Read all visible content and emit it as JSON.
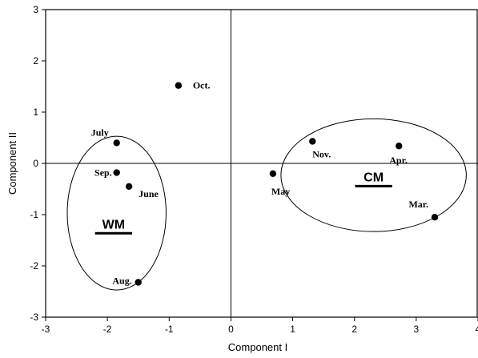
{
  "chart_data": {
    "type": "scatter",
    "title": "",
    "xlabel": "Component I",
    "ylabel": "Component II",
    "xlim": [
      -3,
      4
    ],
    "ylim": [
      -3,
      3
    ],
    "xticks": [
      -3,
      -2,
      -1,
      0,
      1,
      2,
      3,
      4
    ],
    "yticks": [
      -3,
      -2,
      -1,
      0,
      1,
      2,
      3
    ],
    "reference_lines": {
      "x": 0,
      "y": 0
    },
    "grid": false,
    "legend": "none",
    "points": [
      {
        "label": "Oct.",
        "x": -0.85,
        "y": 1.52
      },
      {
        "label": "July",
        "x": -1.85,
        "y": 0.4
      },
      {
        "label": "Sep.",
        "x": -1.85,
        "y": -0.18
      },
      {
        "label": "June",
        "x": -1.65,
        "y": -0.45
      },
      {
        "label": "Aug.",
        "x": -1.5,
        "y": -2.32
      },
      {
        "label": "May",
        "x": 0.68,
        "y": -0.2
      },
      {
        "label": "Nov.",
        "x": 1.32,
        "y": 0.43
      },
      {
        "label": "Apr.",
        "x": 2.72,
        "y": 0.34
      },
      {
        "label": "Mar.",
        "x": 3.3,
        "y": -1.05
      }
    ],
    "groups": [
      {
        "label": "WM",
        "center": [
          -1.85,
          -0.97
        ],
        "radii": [
          0.8,
          1.5
        ]
      },
      {
        "label": "CM",
        "center": [
          2.31,
          -0.23
        ],
        "radii": [
          1.5,
          1.1
        ]
      }
    ],
    "color": "#000000"
  }
}
